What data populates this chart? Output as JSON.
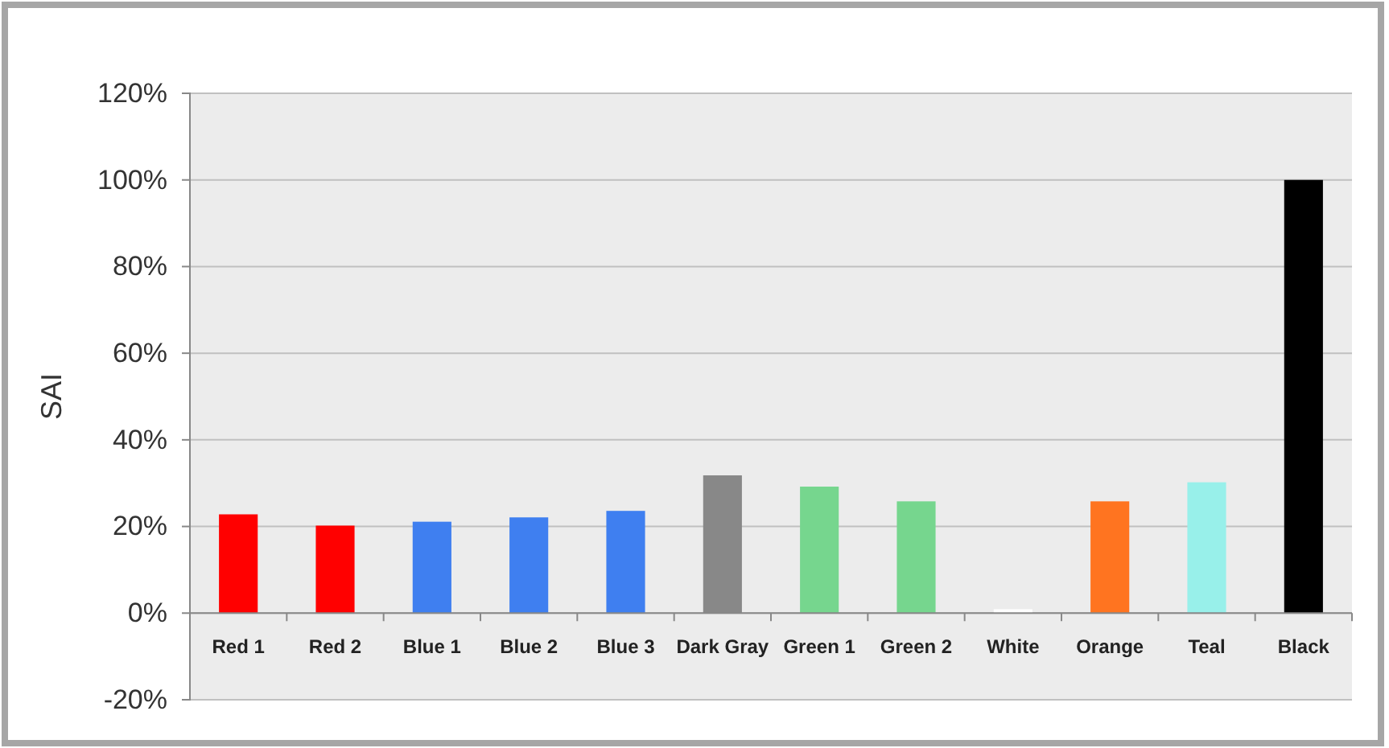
{
  "chart_data": {
    "type": "bar",
    "ylabel": "SAI",
    "categories": [
      "Red 1",
      "Red 2",
      "Blue 1",
      "Blue 2",
      "Blue 3",
      "Dark Gray",
      "Green 1",
      "Green 2",
      "White",
      "Orange",
      "Teal",
      "Black"
    ],
    "values": [
      22.8,
      20.2,
      21.1,
      22.1,
      23.6,
      31.8,
      29.2,
      25.8,
      0.9,
      25.8,
      30.2,
      100
    ],
    "colors": [
      "#ff0000",
      "#ff0000",
      "#3f7ff0",
      "#3f7ff0",
      "#3f7ff0",
      "#888888",
      "#76d68e",
      "#76d68e",
      "#ffffff",
      "#ff7420",
      "#98f0ea",
      "#000000"
    ],
    "ylim": [
      -20,
      120
    ],
    "yticks": [
      {
        "value": -20,
        "label": "-20%"
      },
      {
        "value": 0,
        "label": "0%"
      },
      {
        "value": 20,
        "label": "20%"
      },
      {
        "value": 40,
        "label": "40%"
      },
      {
        "value": 60,
        "label": "60%"
      },
      {
        "value": 80,
        "label": "80%"
      },
      {
        "value": 100,
        "label": "100%"
      },
      {
        "value": 120,
        "label": "120%"
      }
    ],
    "grid": "y"
  }
}
